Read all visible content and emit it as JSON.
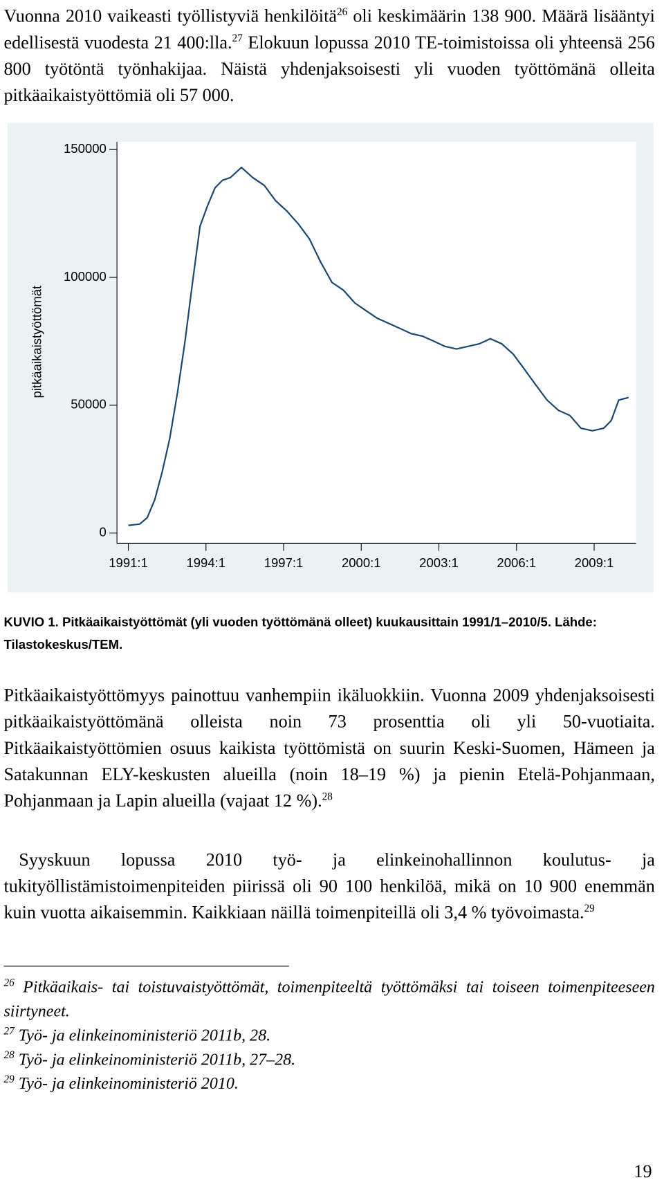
{
  "paragraphs": [
    {
      "top": 5,
      "parts": [
        {
          "text": "Vuonna 2010 vaikeasti työllistyviä henkilöitä"
        },
        {
          "sup": "26"
        },
        {
          "text": " oli keskimäärin 138 900. Määrä lisääntyi edellisestä vuodesta 21 400:lla."
        },
        {
          "sup": "27"
        },
        {
          "text": " Elokuun lopussa 2010 TE-toimistoissa oli yhteensä 256 800 työtöntä työnhakijaa. Näistä yhdenjaksoisesti yli vuoden työttömänä olleita pitkäaikaistyöttömiä oli 57 000."
        }
      ]
    },
    {
      "top": 905,
      "parts": [
        {
          "text": "Pitkäaikaistyöttömyys painottuu vanhempiin ikäluokkiin. Vuonna 2009 yhdenjaksoisesti pitkäaikaistyöttömänä olleista noin 73 prosenttia oli yli 50-vuotiaita. Pitkäaikaistyöttömien osuus kaikista työttömistä on suurin Keski-Suomen, Hämeen ja Satakunnan ELY-keskusten alueilla (noin 18–19 %) ja pienin Etelä-Pohjanmaan, Pohjanmaan ja Lapin alueilla (vajaat 12 %)."
        },
        {
          "sup": "28"
        }
      ]
    },
    {
      "top": 1123,
      "parts": [
        {
          "text": "Syyskuun lopussa 2010 työ- ja elinkeinohallinnon koulutus- ja tukityöllistämistoimenpiteiden piirissä oli 90 100 henkilöä, mikä on 10 900 enemmän kuin vuotta aikaisemmin. Kaikkiaan näillä toimenpiteillä oli 3,4 % työvoimasta."
        },
        {
          "sup": "29"
        }
      ]
    }
  ],
  "chart_data": {
    "type": "line",
    "ylabel": "pitkäaikaistyöttömät",
    "color": "#1a476f",
    "x": [
      1991.0,
      1991.44,
      1991.73,
      1992.02,
      1992.31,
      1992.6,
      1992.9,
      1993.19,
      1993.48,
      1993.77,
      1994.06,
      1994.35,
      1994.64,
      1994.94,
      1995.37,
      1995.81,
      1996.25,
      1996.69,
      1997.12,
      1997.56,
      1998.0,
      1998.43,
      1998.87,
      1999.31,
      1999.75,
      2000.18,
      2000.62,
      2001.06,
      2001.5,
      2001.93,
      2002.37,
      2002.81,
      2003.24,
      2003.68,
      2004.12,
      2004.56,
      2004.99,
      2005.43,
      2005.87,
      2006.31,
      2006.74,
      2007.18,
      2007.62,
      2008.06,
      2008.49,
      2008.93,
      2009.37,
      2009.66,
      2009.95,
      2010.33
    ],
    "values": [
      3000,
      3500,
      6000,
      13000,
      24000,
      37000,
      55000,
      75000,
      98000,
      120000,
      128000,
      135000,
      138000,
      139000,
      143000,
      139000,
      136000,
      130000,
      126000,
      121000,
      115000,
      106000,
      98000,
      95000,
      90000,
      87000,
      84000,
      82000,
      80000,
      78000,
      77000,
      75000,
      73000,
      72000,
      73000,
      74000,
      76000,
      74000,
      70000,
      64000,
      58000,
      52000,
      48000,
      46000,
      41000,
      40000,
      41000,
      44000,
      52000,
      53000
    ],
    "xlim": [
      1990.56,
      2010.62
    ],
    "ylim": [
      -4000,
      153000
    ],
    "xticks": [
      {
        "value": 1991,
        "label": "1991:1"
      },
      {
        "value": 1994,
        "label": "1994:1"
      },
      {
        "value": 1997,
        "label": "1997:1"
      },
      {
        "value": 2000,
        "label": "2000:1"
      },
      {
        "value": 2003,
        "label": "2003:1"
      },
      {
        "value": 2006,
        "label": "2006:1"
      },
      {
        "value": 2009,
        "label": "2009:1"
      }
    ],
    "yticks": [
      0,
      50000,
      100000,
      150000
    ],
    "grid": false
  },
  "caption": "KUVIO 1. Pitkäaikaistyöttömät (yli vuoden työttömänä olleet) kuukausittain 1991/1–2010/5. Lähde: Tilastokeskus/TEM.",
  "footnotes": [
    {
      "number": "26",
      "text": " Pitkäaikais- tai toistuvaistyöttömät, toimenpiteeltä työttömäksi tai toiseen toimenpiteeseen siirtyneet."
    },
    {
      "number": "27",
      "text": " Työ- ja elinkeinoministeriö 2011b, 28."
    },
    {
      "number": "28",
      "text": " Työ- ja elinkeinoministeriö 2011b, 27–28."
    },
    {
      "number": "29",
      "text": " Työ- ja elinkeinoministeriö 2010."
    }
  ],
  "page_number": "19"
}
